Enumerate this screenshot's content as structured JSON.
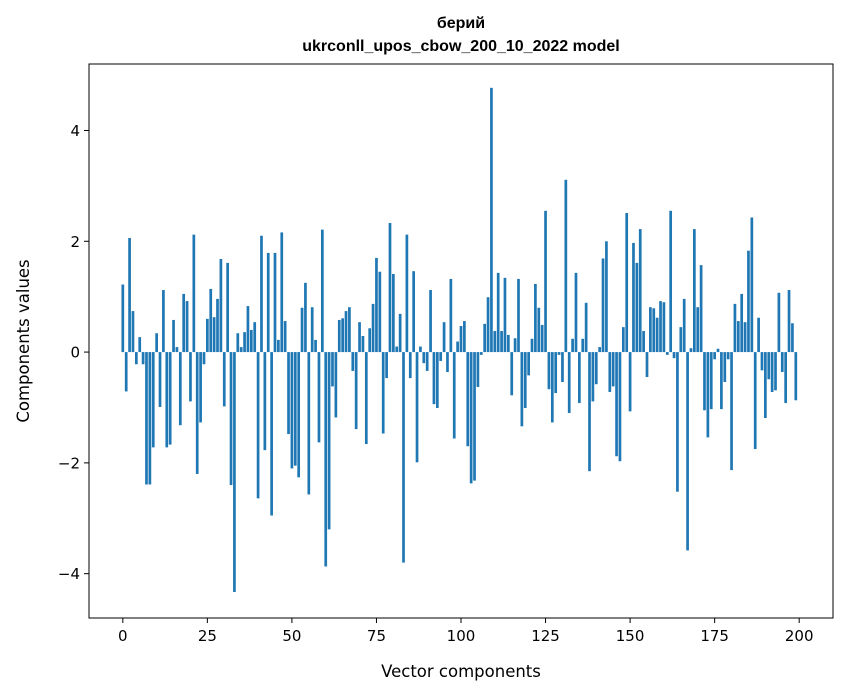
{
  "chart_data": {
    "type": "bar",
    "title": "берий",
    "subtitle": "ukrconll_upos_cbow_200_10_2022 model",
    "xlabel": "Vector components",
    "ylabel": "Components values",
    "xlim": [
      -10,
      210
    ],
    "ylim": [
      -4.8,
      5.2
    ],
    "xticks": [
      0,
      25,
      50,
      75,
      100,
      125,
      150,
      175,
      200
    ],
    "xtick_labels": [
      "0",
      "25",
      "50",
      "75",
      "100",
      "125",
      "150",
      "175",
      "200"
    ],
    "yticks": [
      -4,
      -2,
      0,
      2,
      4
    ],
    "ytick_labels": [
      "−4",
      "−2",
      "0",
      "2",
      "4"
    ],
    "grid": false,
    "bar_color": "#1f77b4",
    "values": [
      1.22,
      -0.71,
      2.06,
      0.74,
      -0.22,
      0.27,
      -0.22,
      -2.39,
      -2.39,
      -1.72,
      0.34,
      -0.99,
      1.12,
      -1.72,
      -1.67,
      0.58,
      0.09,
      -1.32,
      1.05,
      0.92,
      -0.89,
      2.12,
      -2.2,
      -1.27,
      -0.22,
      0.6,
      1.14,
      0.63,
      0.96,
      1.68,
      -0.98,
      1.61,
      -2.4,
      -4.33,
      0.34,
      0.09,
      0.36,
      0.83,
      0.4,
      0.54,
      -2.64,
      2.1,
      -1.77,
      1.79,
      -2.95,
      1.79,
      0.22,
      2.16,
      0.56,
      -1.48,
      -2.1,
      -2.05,
      -2.26,
      0.8,
      1.25,
      -2.57,
      0.81,
      0.22,
      -1.63,
      2.21,
      -3.87,
      -3.2,
      -0.62,
      -1.18,
      0.58,
      0.61,
      0.74,
      0.81,
      -0.34,
      -1.39,
      0.54,
      0.29,
      -1.66,
      0.43,
      0.87,
      1.7,
      1.45,
      -1.47,
      -0.47,
      2.33,
      1.41,
      0.1,
      0.69,
      -3.8,
      2.12,
      -0.47,
      1.46,
      -1.99,
      0.1,
      -0.2,
      -0.34,
      1.12,
      -0.94,
      -1.01,
      -0.16,
      0.54,
      -0.36,
      1.32,
      -1.56,
      0.19,
      0.47,
      0.56,
      -1.7,
      -2.37,
      -2.32,
      -0.63,
      -0.05,
      0.51,
      0.99,
      4.77,
      0.38,
      1.43,
      0.38,
      1.34,
      0.31,
      -0.78,
      0.25,
      1.32,
      -1.34,
      -1.01,
      -0.42,
      0.24,
      1.23,
      0.8,
      0.49,
      2.55,
      -0.67,
      -1.27,
      -0.74,
      -0.05,
      -0.54,
      3.11,
      -1.1,
      0.24,
      1.43,
      -0.92,
      0.24,
      0.89,
      -2.15,
      -0.89,
      -0.58,
      0.09,
      1.69,
      2.0,
      -0.72,
      -0.62,
      -1.88,
      -1.97,
      0.45,
      2.51,
      -1.07,
      1.97,
      1.61,
      2.22,
      0.38,
      -0.45,
      0.81,
      0.79,
      0.62,
      0.92,
      0.9,
      -0.05,
      2.55,
      -0.11,
      -2.52,
      0.45,
      0.96,
      -3.58,
      0.07,
      2.22,
      0.81,
      1.57,
      -1.05,
      -1.54,
      -1.03,
      -0.13,
      0.06,
      -1.03,
      -0.54,
      -0.13,
      -2.13,
      0.87,
      0.56,
      1.05,
      0.54,
      1.83,
      2.43,
      -1.75,
      0.62,
      -0.33,
      -1.19,
      -0.49,
      -0.72,
      -0.69,
      1.07,
      -0.36,
      -0.92,
      1.12,
      0.52,
      -0.87
    ]
  }
}
